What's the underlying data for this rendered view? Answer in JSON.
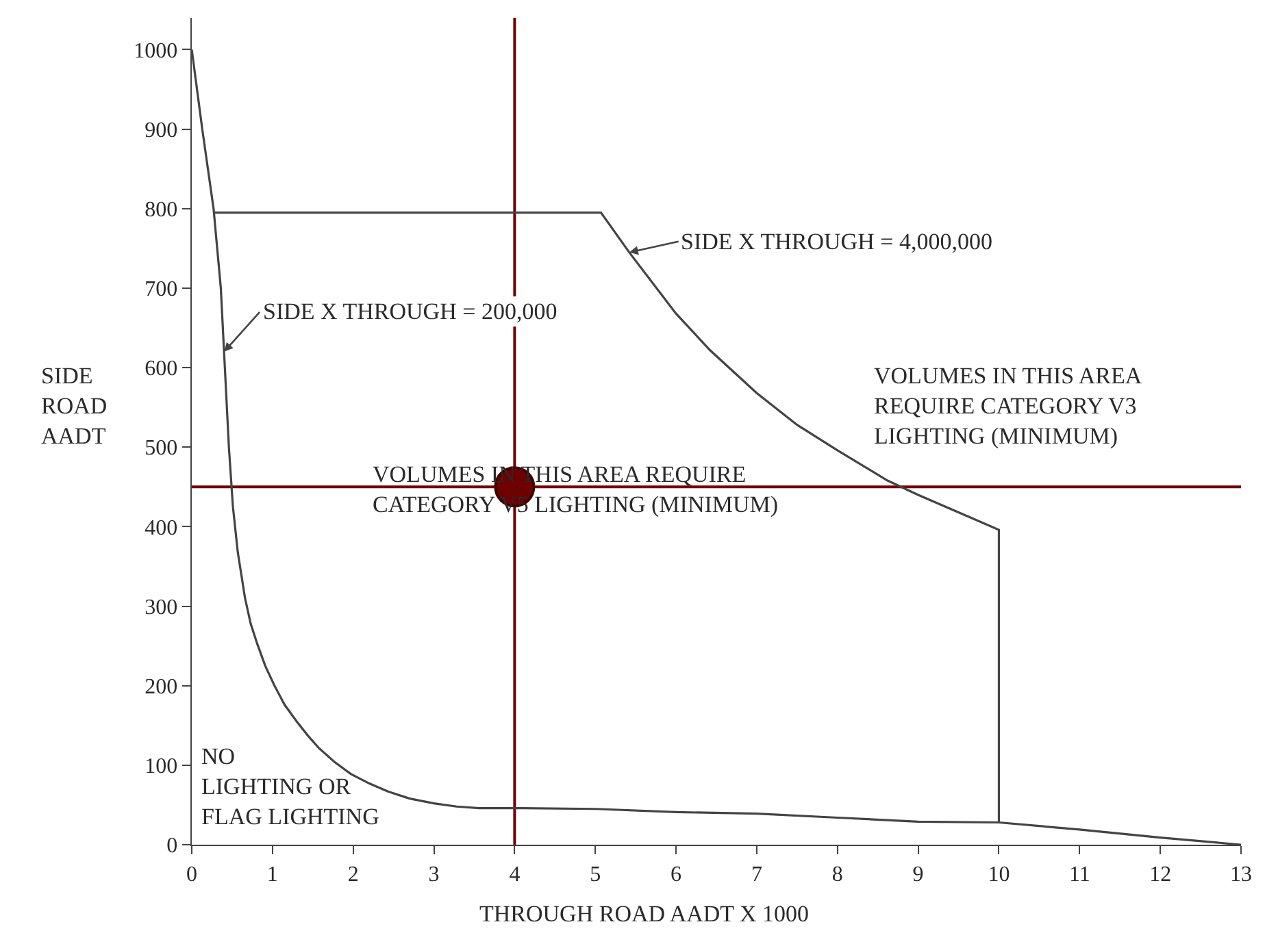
{
  "chart_data": {
    "type": "line",
    "xlabel": "THROUGH ROAD AADT X 1000",
    "ylabel": "SIDE\nROAD\nAADT",
    "xlim": [
      0,
      13
    ],
    "ylim": [
      0,
      1040
    ],
    "xticks": [
      0,
      1,
      2,
      3,
      4,
      5,
      6,
      7,
      8,
      9,
      10,
      11,
      12,
      13
    ],
    "yticks": [
      0,
      100,
      200,
      300,
      400,
      500,
      600,
      700,
      800,
      900,
      1000
    ],
    "marker": "none",
    "series": [
      {
        "color": "#444444",
        "x": [
          0.27,
          5.07,
          5.42,
          6,
          6.42,
          7,
          7.5,
          8,
          8.62,
          9,
          9.5,
          10,
          10
        ],
        "values": [
          795,
          795,
          745,
          668,
          622,
          568,
          528,
          496,
          458,
          440,
          418,
          396,
          28
        ]
      },
      {
        "color": "#444444",
        "x": [
          0,
          0.13,
          0.27,
          0.36,
          0.4,
          0.46,
          0.51,
          0.57,
          0.66,
          0.73,
          0.81,
          0.91,
          1.02,
          1.15,
          1.3,
          1.44,
          1.58,
          1.77,
          1.97,
          2.2,
          2.43,
          2.7,
          3,
          3.28,
          3.56,
          4,
          5,
          6,
          7,
          8,
          9,
          10,
          11,
          12,
          13
        ],
        "values": [
          1000,
          900,
          800,
          700,
          620,
          500,
          425,
          368,
          310,
          278,
          253,
          225,
          201,
          176,
          155,
          137,
          121,
          104,
          89,
          77,
          67,
          58,
          52,
          48,
          46,
          46,
          45,
          41,
          39,
          34,
          29,
          28,
          19,
          9,
          0
        ]
      },
      {
        "type": "scatter",
        "marker": "circle",
        "color": "#6e0000",
        "x": [
          4
        ],
        "values": [
          450
        ]
      }
    ],
    "ref_lines": [
      {
        "axis": "y",
        "value": 450,
        "color": "#6e0000"
      },
      {
        "axis": "x",
        "value": 4,
        "color": "#6e0000"
      }
    ],
    "annotations": [
      {
        "text": "SIDE X THROUGH = 4,000,000",
        "x": 5.42,
        "y": 745
      },
      {
        "text": "SIDE X THROUGH = 200,000",
        "x": 0.4,
        "y": 620
      },
      "VOLUMES IN THIS AREA\nREQUIRE CATEGORY V3\nLIGHTING (MINIMUM)",
      "VOLUMES IN THIS AREA REQUIRE\nCATEGORY V5 LIGHTING (MINIMUM)",
      "NO\nLIGHTING OR\nFLAG LIGHTING"
    ]
  }
}
